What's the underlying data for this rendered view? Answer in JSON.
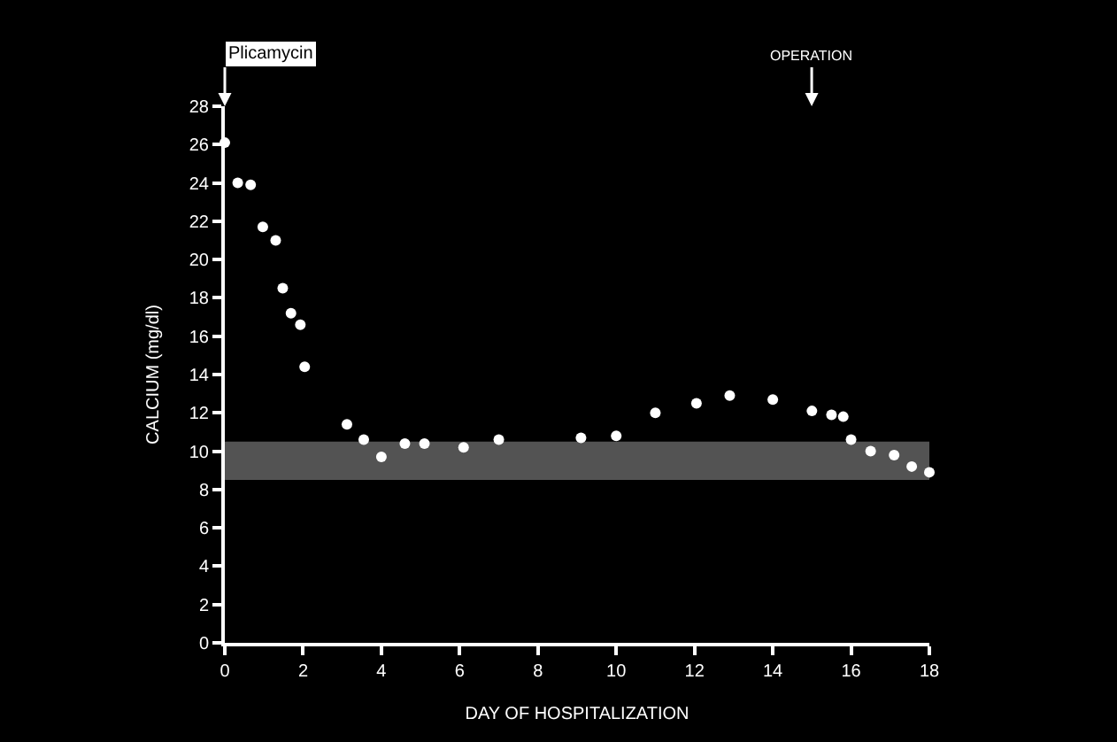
{
  "chart_data": {
    "type": "scatter",
    "xlabel": "DAY OF HOSPITALIZATION",
    "ylabel": "CALCIUM (mg/dl)",
    "x": [
      0,
      0.33,
      0.66,
      0.97,
      1.3,
      1.48,
      1.69,
      1.93,
      2.04,
      3.12,
      3.55,
      4.0,
      4.6,
      5.1,
      6.1,
      7.0,
      9.1,
      10.0,
      11.0,
      12.05,
      12.9,
      14.0,
      15.0,
      15.5,
      15.8,
      16.0,
      16.5,
      17.1,
      17.55,
      18.0
    ],
    "values": [
      26.1,
      24.0,
      23.9,
      21.7,
      21.0,
      18.5,
      17.2,
      16.6,
      14.4,
      11.4,
      10.6,
      9.7,
      10.4,
      10.4,
      10.2,
      10.6,
      10.7,
      10.8,
      12.0,
      12.5,
      12.9,
      12.7,
      12.1,
      11.9,
      11.8,
      10.6,
      10.0,
      9.8,
      9.2,
      8.9
    ],
    "color": "#ffffff",
    "marker": "circle",
    "grid": false,
    "xlim": [
      0,
      18
    ],
    "xticks": [
      0,
      2,
      4,
      6,
      8,
      10,
      12,
      14,
      16,
      18
    ],
    "ylim": [
      0,
      28
    ],
    "yticks": [
      0,
      2,
      4,
      6,
      8,
      10,
      12,
      14,
      16,
      18,
      20,
      22,
      24,
      26,
      28
    ],
    "bands": [
      {
        "axis": "y",
        "from": 8.5,
        "to": 10.5,
        "color": "#8a8a8a"
      }
    ],
    "annotations": [
      "Plicamycin",
      "OPERATION"
    ]
  }
}
